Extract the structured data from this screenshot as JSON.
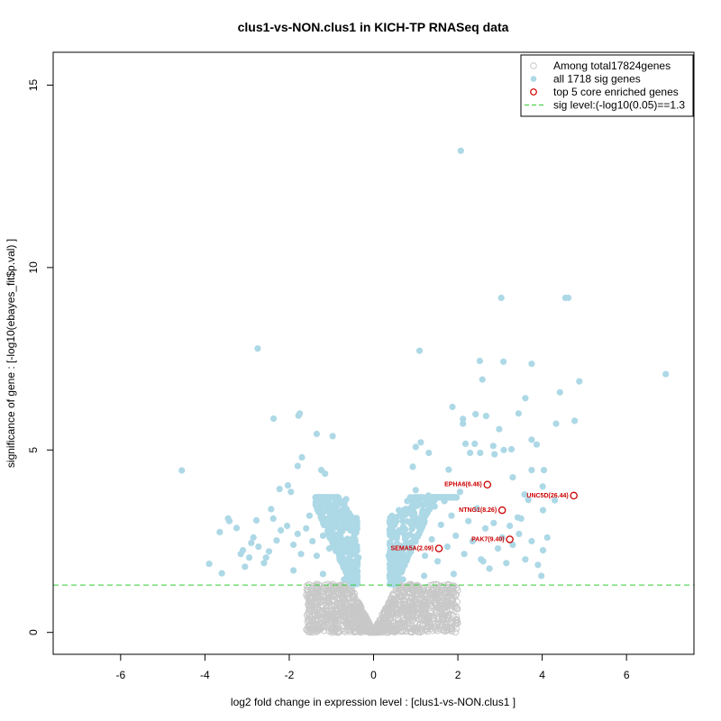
{
  "chart_data": {
    "type": "scatter",
    "title": "clus1-vs-NON.clus1 in KICH-TP RNASeq data",
    "xlabel": "log2 fold change in expression level : [clus1-vs-NON.clus1 ]",
    "ylabel": "significance of gene : [-log10(ebayes_fit$p.val) ]",
    "xlim": [
      -7.6,
      7.6
    ],
    "ylim": [
      -0.6,
      15.9
    ],
    "x_ticks": [
      -6,
      -4,
      -2,
      0,
      2,
      4,
      6
    ],
    "y_ticks": [
      0,
      5,
      10,
      15
    ],
    "grid": false,
    "legend_position": "top-right",
    "colors": {
      "background_genes": "#c8c8c8",
      "sig_genes": "#add8e6",
      "core_genes": "#cc0000",
      "sig_line": "#33cc33"
    },
    "legend": [
      {
        "label": "Among total17824genes",
        "marker": "open-circle-grey"
      },
      {
        "label": "all 1718 sig genes",
        "marker": "filled-circle-lightblue"
      },
      {
        "label": "top 5 core enriched genes",
        "marker": "open-circle-red"
      },
      {
        "label": "sig level:(-log10(0.05)==1.3",
        "marker": "dashed-line-green"
      }
    ],
    "sig_level": 1.3,
    "series": [
      {
        "name": "all 1718 sig genes",
        "points": [
          [
            2.07,
            13.2
          ],
          [
            3.03,
            9.17
          ],
          [
            4.55,
            9.17
          ],
          [
            4.62,
            9.17
          ],
          [
            -2.75,
            7.78
          ],
          [
            1.09,
            7.72
          ],
          [
            2.52,
            7.44
          ],
          [
            3.08,
            7.42
          ],
          [
            3.75,
            7.36
          ],
          [
            6.93,
            7.08
          ],
          [
            4.88,
            6.88
          ],
          [
            2.58,
            6.93
          ],
          [
            4.42,
            6.58
          ],
          [
            3.6,
            6.42
          ],
          [
            1.87,
            6.18
          ],
          [
            2.42,
            5.98
          ],
          [
            2.12,
            5.85
          ],
          [
            4.77,
            5.8
          ],
          [
            4.33,
            5.72
          ],
          [
            2.12,
            5.72
          ],
          [
            -1.75,
            6.0
          ],
          [
            -1.78,
            5.94
          ],
          [
            -2.37,
            5.86
          ],
          [
            3.44,
            6.0
          ],
          [
            2.67,
            5.93
          ],
          [
            2.98,
            5.57
          ],
          [
            -1.35,
            5.44
          ],
          [
            -0.97,
            5.38
          ],
          [
            3.75,
            5.28
          ],
          [
            2.4,
            5.17
          ],
          [
            1.12,
            5.21
          ],
          [
            3.87,
            5.15
          ],
          [
            2.18,
            5.17
          ],
          [
            2.84,
            5.11
          ],
          [
            1.0,
            5.08
          ],
          [
            3.27,
            5.02
          ],
          [
            3.09,
            5.0
          ],
          [
            0.93,
            4.54
          ],
          [
            3.75,
            4.45
          ],
          [
            4.04,
            4.45
          ],
          [
            1.78,
            4.46
          ],
          [
            1.31,
            4.92
          ],
          [
            2.29,
            4.92
          ],
          [
            2.53,
            4.92
          ],
          [
            2.87,
            4.88
          ],
          [
            -4.55,
            4.44
          ],
          [
            -1.24,
            4.45
          ],
          [
            -1.15,
            4.35
          ],
          [
            -1.7,
            4.8
          ],
          [
            -1.8,
            4.56
          ],
          [
            -2.03,
            4.03
          ],
          [
            -2.23,
            3.93
          ],
          [
            -1.96,
            3.85
          ],
          [
            3.3,
            4.25
          ],
          [
            3.58,
            3.78
          ],
          [
            4.01,
            4.0
          ],
          [
            3.67,
            3.63
          ],
          [
            4.3,
            3.62
          ],
          [
            4.02,
            3.35
          ],
          [
            3.42,
            3.15
          ],
          [
            3.5,
            3.12
          ],
          [
            3.23,
            2.92
          ],
          [
            -3.42,
            3.05
          ],
          [
            -3.45,
            3.12
          ],
          [
            -3.25,
            2.86
          ],
          [
            -2.43,
            3.38
          ],
          [
            -2.78,
            3.07
          ],
          [
            -2.38,
            3.12
          ],
          [
            -3.65,
            2.75
          ],
          [
            -3.9,
            1.88
          ],
          [
            -3.6,
            1.62
          ],
          [
            -3.1,
            2.25
          ],
          [
            -3.15,
            2.15
          ],
          [
            -2.9,
            2.45
          ],
          [
            -2.85,
            2.6
          ],
          [
            -2.73,
            2.35
          ],
          [
            -2.55,
            2.05
          ],
          [
            -2.48,
            2.22
          ],
          [
            -2.3,
            2.52
          ],
          [
            -2.2,
            2.8
          ],
          [
            -2.05,
            2.92
          ],
          [
            -1.9,
            2.4
          ],
          [
            -1.8,
            2.7
          ],
          [
            -1.72,
            2.15
          ],
          [
            -1.6,
            2.85
          ],
          [
            -1.52,
            3.2
          ],
          [
            -1.45,
            2.5
          ],
          [
            -1.35,
            2.1
          ],
          [
            -1.28,
            3.35
          ],
          [
            -1.2,
            2.65
          ],
          [
            -1.12,
            3.05
          ],
          [
            -1.05,
            2.3
          ],
          [
            -0.98,
            3.5
          ],
          [
            -0.9,
            2.9
          ],
          [
            -0.82,
            3.62
          ],
          [
            -0.75,
            2.55
          ],
          [
            -0.7,
            3.1
          ],
          [
            -0.65,
            3.65
          ],
          [
            -0.6,
            2.2
          ],
          [
            -0.55,
            2.8
          ],
          [
            -0.5,
            1.9
          ],
          [
            -0.45,
            2.45
          ],
          [
            -0.4,
            1.7
          ],
          [
            -0.36,
            2.05
          ],
          [
            0.36,
            2.1
          ],
          [
            0.4,
            1.75
          ],
          [
            0.45,
            2.6
          ],
          [
            0.5,
            3.1
          ],
          [
            0.55,
            2.2
          ],
          [
            0.6,
            3.35
          ],
          [
            0.65,
            1.9
          ],
          [
            0.72,
            2.85
          ],
          [
            0.8,
            3.6
          ],
          [
            0.85,
            2.4
          ],
          [
            0.92,
            3.05
          ],
          [
            1.0,
            3.9
          ],
          [
            1.08,
            2.7
          ],
          [
            1.15,
            3.25
          ],
          [
            1.22,
            2.1
          ],
          [
            1.3,
            3.75
          ],
          [
            1.38,
            2.55
          ],
          [
            1.45,
            3.45
          ],
          [
            1.52,
            1.95
          ],
          [
            1.6,
            2.95
          ],
          [
            1.68,
            3.6
          ],
          [
            1.75,
            2.35
          ],
          [
            1.85,
            3.2
          ],
          [
            1.95,
            2.65
          ],
          [
            2.05,
            3.85
          ],
          [
            2.15,
            2.15
          ],
          [
            2.25,
            3.05
          ],
          [
            2.35,
            2.5
          ],
          [
            2.45,
            3.4
          ],
          [
            2.55,
            2.0
          ],
          [
            2.65,
            2.85
          ],
          [
            2.75,
            1.75
          ],
          [
            2.85,
            3.0
          ],
          [
            2.95,
            2.3
          ],
          [
            3.05,
            2.6
          ],
          [
            3.15,
            1.9
          ],
          [
            3.3,
            2.4
          ],
          [
            3.45,
            2.7
          ],
          [
            3.6,
            2.0
          ],
          [
            3.75,
            2.5
          ],
          [
            3.9,
            1.85
          ],
          [
            4.02,
            2.25
          ],
          [
            4.12,
            2.6
          ],
          [
            3.98,
            1.55
          ],
          [
            2.6,
            1.95
          ],
          [
            1.9,
            1.6
          ],
          [
            1.2,
            1.55
          ],
          [
            0.7,
            1.45
          ],
          [
            -0.7,
            1.45
          ],
          [
            -1.2,
            1.6
          ],
          [
            -1.9,
            1.7
          ],
          [
            -2.6,
            1.9
          ],
          [
            -3.05,
            1.8
          ],
          [
            -2.95,
            2.05
          ]
        ]
      },
      {
        "name": "top 5 core enriched genes",
        "points": [
          {
            "label": "EPHA6(6.46)",
            "x": 2.7,
            "y": 4.05
          },
          {
            "label": "UNC5D(26.44)",
            "x": 4.75,
            "y": 3.75
          },
          {
            "label": "NTNG1(8.26)",
            "x": 3.05,
            "y": 3.35
          },
          {
            "label": "PAK7(9.40)",
            "x": 3.23,
            "y": 2.55
          },
          {
            "label": "SEMA5A(2.09)",
            "x": 1.55,
            "y": 2.3
          }
        ]
      }
    ]
  }
}
